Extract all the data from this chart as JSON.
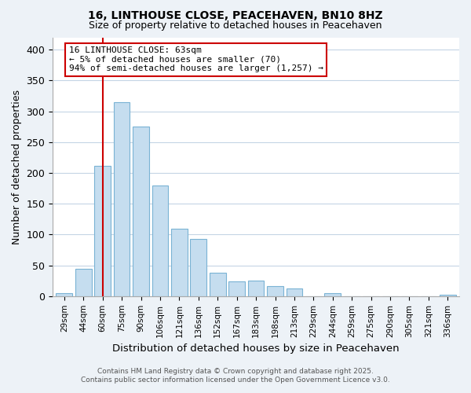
{
  "title": "16, LINTHOUSE CLOSE, PEACEHAVEN, BN10 8HZ",
  "subtitle": "Size of property relative to detached houses in Peacehaven",
  "xlabel": "Distribution of detached houses by size in Peacehaven",
  "ylabel": "Number of detached properties",
  "bar_labels": [
    "29sqm",
    "44sqm",
    "60sqm",
    "75sqm",
    "90sqm",
    "106sqm",
    "121sqm",
    "136sqm",
    "152sqm",
    "167sqm",
    "183sqm",
    "198sqm",
    "213sqm",
    "229sqm",
    "244sqm",
    "259sqm",
    "275sqm",
    "290sqm",
    "305sqm",
    "321sqm",
    "336sqm"
  ],
  "bar_values": [
    5,
    44,
    212,
    315,
    275,
    180,
    110,
    93,
    38,
    24,
    25,
    16,
    13,
    0,
    5,
    0,
    0,
    0,
    0,
    0,
    2
  ],
  "bar_color": "#c5ddef",
  "bar_edge_color": "#7ab3d4",
  "vline_x_index": 2,
  "vline_color": "#cc0000",
  "annotation_line1": "16 LINTHOUSE CLOSE: 63sqm",
  "annotation_line2": "← 5% of detached houses are smaller (70)",
  "annotation_line3": "94% of semi-detached houses are larger (1,257) →",
  "ann_box_color": "#cc0000",
  "ylim": [
    0,
    420
  ],
  "yticks": [
    0,
    50,
    100,
    150,
    200,
    250,
    300,
    350,
    400
  ],
  "footer_line1": "Contains HM Land Registry data © Crown copyright and database right 2025.",
  "footer_line2": "Contains public sector information licensed under the Open Government Licence v3.0.",
  "bg_color": "#edf2f7",
  "plot_bg_color": "#ffffff",
  "grid_color": "#c5d5e5",
  "title_fontsize": 10,
  "subtitle_fontsize": 9
}
